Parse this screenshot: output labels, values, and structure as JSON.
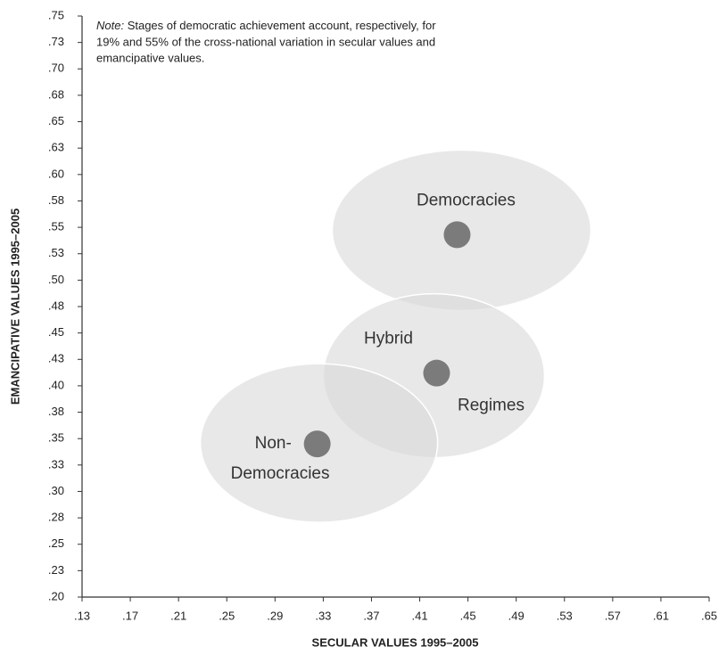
{
  "chart_data": {
    "type": "scatter",
    "note_prefix": "Note:",
    "note_lines": [
      " Stages of democratic achievement account, respectively, for",
      "19% and 55% of the cross-national variation in secular values and",
      "emancipative values."
    ],
    "x_label": "SECULAR VALUES 1995–2005",
    "y_label": "EMANCIPATIVE VALUES 1995–2005",
    "x": [
      0.441,
      0.424,
      0.325
    ],
    "values": [
      0.543,
      0.412,
      0.345
    ],
    "point_labels": [
      [
        "Democracies"
      ],
      [
        "Hybrid",
        "Regimes"
      ],
      [
        "Non-",
        "Democracies"
      ]
    ],
    "color": "#7b7b7b",
    "xlim": [
      0.13,
      0.65
    ],
    "xticks": [
      {
        "value": 0.13,
        "label": ".13"
      },
      {
        "value": 0.17,
        "label": ".17"
      },
      {
        "value": 0.21,
        "label": ".21"
      },
      {
        "value": 0.25,
        "label": ".25"
      },
      {
        "value": 0.29,
        "label": ".29"
      },
      {
        "value": 0.33,
        "label": ".33"
      },
      {
        "value": 0.37,
        "label": ".37"
      },
      {
        "value": 0.41,
        "label": ".41"
      },
      {
        "value": 0.45,
        "label": ".45"
      },
      {
        "value": 0.49,
        "label": ".49"
      },
      {
        "value": 0.53,
        "label": ".53"
      },
      {
        "value": 0.57,
        "label": ".57"
      },
      {
        "value": 0.61,
        "label": ".61"
      },
      {
        "value": 0.65,
        "label": ".65"
      }
    ],
    "ylim": [
      0.2,
      0.75
    ],
    "yticks": [
      {
        "value": 0.2,
        "label": ".20"
      },
      {
        "value": 0.225,
        "label": ".23"
      },
      {
        "value": 0.25,
        "label": ".25"
      },
      {
        "value": 0.275,
        "label": ".28"
      },
      {
        "value": 0.3,
        "label": ".30"
      },
      {
        "value": 0.325,
        "label": ".33"
      },
      {
        "value": 0.35,
        "label": ".35"
      },
      {
        "value": 0.375,
        "label": ".38"
      },
      {
        "value": 0.4,
        "label": ".40"
      },
      {
        "value": 0.425,
        "label": ".43"
      },
      {
        "value": 0.45,
        "label": ".45"
      },
      {
        "value": 0.475,
        "label": ".48"
      },
      {
        "value": 0.5,
        "label": ".50"
      },
      {
        "value": 0.525,
        "label": ".53"
      },
      {
        "value": 0.55,
        "label": ".55"
      },
      {
        "value": 0.575,
        "label": ".58"
      },
      {
        "value": 0.6,
        "label": ".60"
      },
      {
        "value": 0.625,
        "label": ".63"
      },
      {
        "value": 0.65,
        "label": ".65"
      },
      {
        "value": 0.675,
        "label": ".68"
      },
      {
        "value": 0.7,
        "label": ".70"
      },
      {
        "value": 0.725,
        "label": ".73"
      },
      {
        "value": 0.75,
        "label": ".75"
      }
    ]
  }
}
